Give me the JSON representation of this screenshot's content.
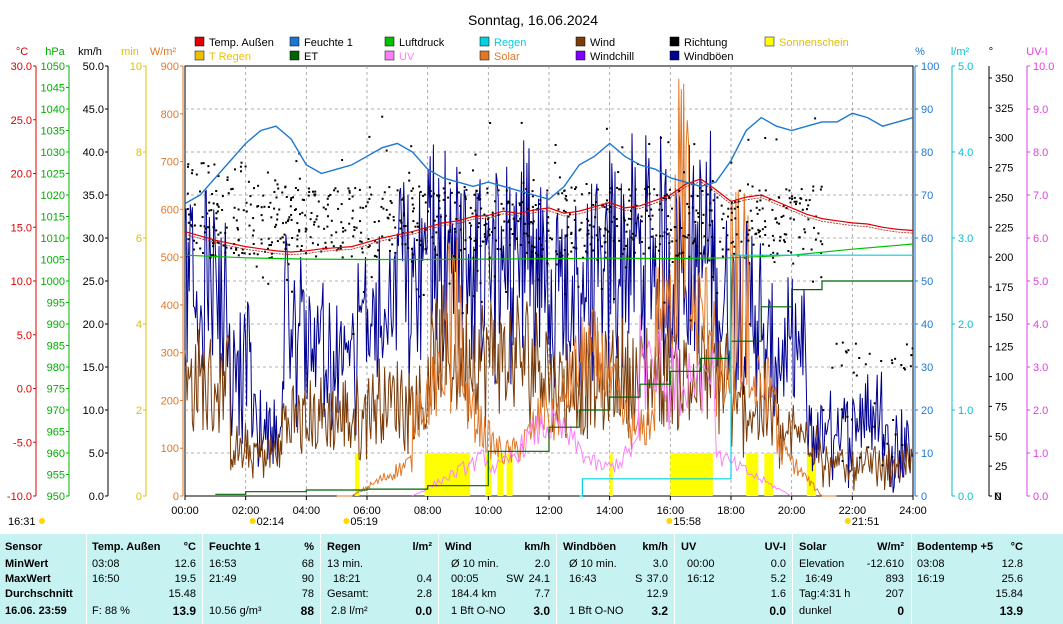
{
  "chart_data": {
    "type": "line",
    "title": "Sonntag, 16.06.2024",
    "x_ticks": [
      "00:00",
      "02:00",
      "04:00",
      "06:00",
      "08:00",
      "10:00",
      "12:00",
      "14:00",
      "16:00",
      "18:00",
      "20:00",
      "22:00",
      "24:00"
    ],
    "legend": [
      {
        "name": "Temp. Außen",
        "color": "#e00000"
      },
      {
        "name": "Feuchte 1",
        "color": "#1e78d2"
      },
      {
        "name": "Luftdruck",
        "color": "#00c000"
      },
      {
        "name": "Regen",
        "color": "#00d0e0"
      },
      {
        "name": "Wind",
        "color": "#7a3c0a"
      },
      {
        "name": "Richtung",
        "color": "#000000"
      },
      {
        "name": "Sonnenschein",
        "color": "#ffff00"
      },
      {
        "name": "T Regen",
        "color": "#f0c000"
      },
      {
        "name": "ET",
        "color": "#006400"
      },
      {
        "name": "UV",
        "color": "#ff80ff"
      },
      {
        "name": "Solar",
        "color": "#e07828"
      },
      {
        "name": "Windchill",
        "color": "#8000ff"
      },
      {
        "name": "Windböen",
        "color": "#000090"
      }
    ],
    "left_axes": [
      {
        "unit": "°C",
        "color": "#e00000",
        "ticks": [
          "30.0",
          "25.0",
          "20.0",
          "15.0",
          "10.0",
          "5.0",
          "0.0",
          "-5.0",
          "-10.0"
        ],
        "range": [
          -10,
          30
        ]
      },
      {
        "unit": "hPa",
        "color": "#00b000",
        "ticks": [
          "1050",
          "1045",
          "1040",
          "1035",
          "1030",
          "1025",
          "1020",
          "1015",
          "1010",
          "1005",
          "1000",
          "995",
          "990",
          "985",
          "980",
          "975",
          "970",
          "965",
          "960",
          "955",
          "950"
        ],
        "range": [
          950,
          1050
        ]
      },
      {
        "unit": "km/h",
        "color": "#000000",
        "ticks": [
          "50.0",
          "45.0",
          "40.0",
          "35.0",
          "30.0",
          "25.0",
          "20.0",
          "15.0",
          "10.0",
          "5.0",
          "0.0"
        ],
        "range": [
          0,
          50
        ]
      },
      {
        "unit": "min",
        "color": "#e0c000",
        "ticks": [
          "10",
          "8",
          "6",
          "4",
          "2",
          "0"
        ],
        "range": [
          0,
          10
        ]
      },
      {
        "unit": "W/m²",
        "color": "#e07828",
        "ticks": [
          "900",
          "800",
          "700",
          "600",
          "500",
          "400",
          "300",
          "200",
          "100",
          "0"
        ],
        "range": [
          0,
          900
        ]
      }
    ],
    "right_axes": [
      {
        "unit": "%",
        "color": "#1e78d2",
        "ticks": [
          "100",
          "90",
          "80",
          "70",
          "60",
          "50",
          "40",
          "30",
          "20",
          "10",
          "0"
        ],
        "range": [
          0,
          100
        ]
      },
      {
        "unit": "l/m²",
        "color": "#00c0d0",
        "ticks": [
          "5.0",
          "4.0",
          "3.0",
          "2.0",
          "1.0",
          "0.0"
        ],
        "range": [
          0,
          5
        ]
      },
      {
        "unit": "°",
        "color": "#000000",
        "ticks": [
          "350",
          "325",
          "300",
          "275",
          "250",
          "225",
          "200",
          "175",
          "150",
          "125",
          "100",
          "75",
          "50",
          "25",
          "0"
        ],
        "range": [
          0,
          360
        ],
        "n_label": "N"
      },
      {
        "unit": "UV-I",
        "color": "#e040e0",
        "ticks": [
          "10.0",
          "9.0",
          "8.0",
          "7.0",
          "6.0",
          "5.0",
          "4.0",
          "3.0",
          "2.0",
          "1.0",
          "0.0"
        ],
        "range": [
          0,
          10
        ]
      }
    ],
    "series": [
      {
        "name": "Temp. Außen",
        "axis": "°C",
        "x_hours": [
          0,
          0.5,
          1,
          1.5,
          2,
          2.5,
          3,
          3.5,
          4,
          4.5,
          5,
          5.5,
          6,
          6.5,
          7,
          7.5,
          8,
          8.5,
          9,
          9.5,
          10,
          10.5,
          11,
          11.5,
          12,
          12.5,
          13,
          13.5,
          14,
          14.5,
          15,
          15.5,
          16,
          16.5,
          17,
          17.5,
          18,
          18.5,
          19,
          19.5,
          20,
          20.5,
          21,
          21.5,
          22,
          22.5,
          23,
          23.5,
          24
        ],
        "values": [
          14.6,
          14.2,
          13.8,
          13.5,
          13.2,
          13.0,
          12.8,
          12.7,
          12.8,
          13.0,
          13.1,
          13.2,
          13.6,
          14.0,
          14.3,
          14.6,
          15.0,
          15.4,
          15.6,
          16.0,
          16.1,
          16.5,
          16.3,
          16.6,
          16.8,
          16.3,
          16.5,
          16.9,
          17.3,
          16.8,
          17.0,
          17.5,
          18.0,
          19.0,
          19.5,
          18.5,
          17.4,
          17.8,
          18.0,
          17.4,
          16.8,
          16.2,
          15.8,
          15.6,
          15.4,
          15.3,
          15.0,
          14.8,
          14.7
        ]
      },
      {
        "name": "Feuchte 1",
        "axis": "%",
        "x_hours": [
          0,
          0.5,
          1,
          1.5,
          2,
          2.5,
          3,
          3.5,
          4,
          4.5,
          5,
          5.5,
          6,
          6.5,
          7,
          7.5,
          8,
          8.5,
          9,
          9.5,
          10,
          10.5,
          11,
          11.5,
          12,
          12.5,
          13,
          13.5,
          14,
          14.5,
          15,
          15.5,
          16,
          16.5,
          17,
          17.5,
          18,
          18.5,
          19,
          19.5,
          20,
          20.5,
          21,
          21.5,
          22,
          22.5,
          23,
          23.5,
          24
        ],
        "values": [
          68,
          70,
          74,
          78,
          82,
          85,
          86,
          83,
          77,
          75,
          76,
          77,
          79,
          81,
          82,
          80,
          76,
          74,
          73,
          72,
          73,
          72,
          71,
          70,
          69,
          72,
          77,
          79,
          82,
          79,
          77,
          76,
          74,
          73,
          72,
          73,
          78,
          85,
          88,
          86,
          85,
          86,
          87,
          87,
          89,
          88,
          86,
          87,
          88
        ]
      },
      {
        "name": "Luftdruck",
        "axis": "hPa",
        "x_hours": [
          0,
          2,
          4,
          6,
          8,
          10,
          12,
          14,
          16,
          18,
          20,
          22,
          24
        ],
        "values": [
          1006.0,
          1005.4,
          1005.1,
          1005.0,
          1005.0,
          1005.1,
          1005.2,
          1005.3,
          1005.2,
          1005.4,
          1006.0,
          1007.4,
          1008.6
        ]
      },
      {
        "name": "ET",
        "axis": "l/m²",
        "x_hours": [
          1,
          2,
          4,
          6,
          8,
          10,
          12,
          13,
          14,
          15,
          16,
          17,
          18,
          19,
          20,
          21,
          22,
          24
        ],
        "values": [
          0.02,
          0.05,
          0.07,
          0.08,
          0.12,
          0.52,
          0.8,
          1.0,
          1.15,
          1.3,
          1.45,
          1.6,
          1.8,
          2.2,
          2.4,
          2.5,
          2.5,
          2.5
        ]
      },
      {
        "name": "Regen",
        "axis": "l/m²",
        "x_hours": [
          13,
          13.1,
          16.4,
          17.2,
          17.9,
          18.0,
          18.5,
          19.0,
          19.5,
          20.0,
          24
        ],
        "values": [
          0,
          0.2,
          0.2,
          0.2,
          0.2,
          2.8,
          2.8,
          2.8,
          2.8,
          2.8,
          2.8
        ]
      }
    ],
    "sun_bars_hours": [
      [
        5.6,
        5.75
      ],
      [
        7.9,
        9.4
      ],
      [
        9.9,
        10.1
      ],
      [
        10.3,
        10.5
      ],
      [
        10.6,
        10.8
      ],
      [
        14.0,
        14.1
      ],
      [
        16.0,
        17.4
      ],
      [
        18.5,
        18.9
      ],
      [
        19.1,
        19.4
      ],
      [
        20.5,
        20.8
      ]
    ],
    "markers": [
      {
        "label": "16:31",
        "hour": 16.5
      },
      {
        "label": "02:14",
        "hour": 2.23
      },
      {
        "label": "05:19",
        "hour": 5.32
      },
      {
        "label": "15:58",
        "hour": 15.97
      },
      {
        "label": "21:51",
        "hour": 21.85
      }
    ],
    "grid": true
  },
  "stats": {
    "sensor": {
      "header": "Sensor",
      "rows": [
        "MinWert",
        "MaxWert",
        "Durchschnitt"
      ],
      "footer": "16.06. 23:59"
    },
    "temp": {
      "header": "Temp. Außen",
      "unit": "°C",
      "min_time": "03:08",
      "min": "12.6",
      "max_time": "16:50",
      "max": "19.5",
      "avg": "15.48",
      "footer_label": "F: 88 %",
      "footer_value": "13.9"
    },
    "hum": {
      "header": "Feuchte 1",
      "unit": "%",
      "min_time": "16:53",
      "min": "68",
      "max_time": "21:49",
      "max": "90",
      "avg": "78",
      "footer_label": "10.56 g/m³",
      "footer_value": "88"
    },
    "rain": {
      "header": "Regen",
      "unit": "l/m²",
      "r1_label": "13 min.",
      "r1_value": "",
      "r2_label": "18:21",
      "r2_value": "0.4",
      "r3_label": "Gesamt:",
      "r3_value": "2.8",
      "footer_label": "2.8 l/m²",
      "footer_value": "0.0"
    },
    "wind": {
      "header": "Wind",
      "unit": "km/h",
      "r1_label": "Ø 10 min.",
      "r1_value": "2.0",
      "r2_label": "00:05",
      "r2_mid": "SW",
      "r2_value": "24.1",
      "r3_label": "184.4 km",
      "r3_value": "7.7",
      "footer_label": "1 Bft O-NO",
      "footer_value": "3.0"
    },
    "gust": {
      "header": "Windböen",
      "unit": "km/h",
      "r1_label": "Ø 10 min.",
      "r1_value": "3.0",
      "r2_label": "16:43",
      "r2_mid": "S",
      "r2_value": "37.0",
      "r3_value": "12.9",
      "footer_label": "1 Bft O-NO",
      "footer_value": "3.2"
    },
    "uv": {
      "header": "UV",
      "unit": "UV-I",
      "r1_label": "00:00",
      "r1_value": "0.0",
      "r2_label": "16:12",
      "r2_value": "5.2",
      "r3_value": "1.6",
      "footer_value": "0.0"
    },
    "solar": {
      "header": "Solar",
      "unit": "W/m²",
      "r1_label": "Elevation",
      "r1_value": "-12.610",
      "r2_label": "16:49",
      "r2_value": "893",
      "r3_label": "Tag:4:31 h",
      "r3_value": "207",
      "footer_label": "dunkel",
      "footer_value": "0"
    },
    "soil": {
      "header": "Bodentemp +5",
      "unit": "°C",
      "min_time": "03:08",
      "min": "12.8",
      "max_time": "16:19",
      "max": "25.6",
      "avg": "15.84",
      "footer_value": "13.9"
    }
  }
}
